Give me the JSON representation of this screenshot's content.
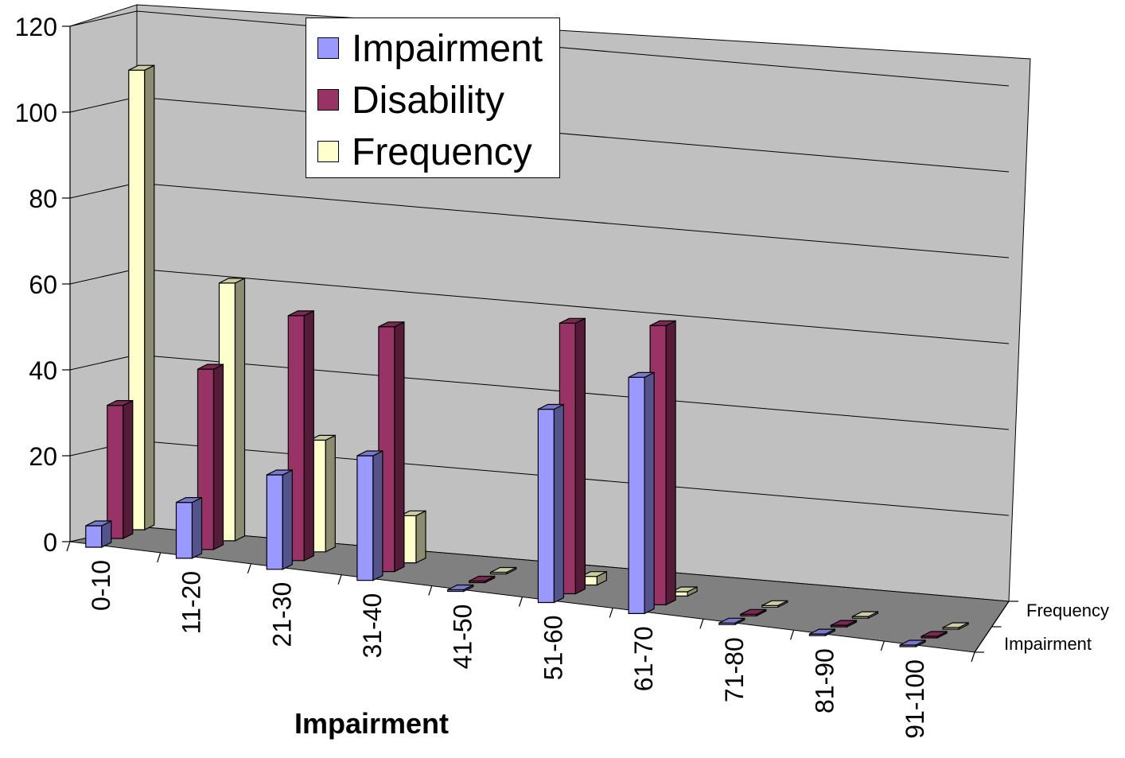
{
  "chart_data": {
    "type": "bar",
    "style": "3d-clustered-column",
    "xlabel": "Impairment",
    "ylabel": "",
    "ylim": [
      0,
      120
    ],
    "yticks": [
      0,
      20,
      40,
      60,
      80,
      100,
      120
    ],
    "grid": true,
    "legend_position": "top-center",
    "depth_axis_labels": [
      "Frequency",
      "Impairment"
    ],
    "categories": [
      "0-10",
      "11-20",
      "21-30",
      "31-40",
      "41-50",
      "51-60",
      "61-70",
      "71-80",
      "81-90",
      "91-100"
    ],
    "series": [
      {
        "name": "Impairment",
        "color": "#9999FF",
        "values": [
          5,
          13,
          22,
          29,
          0,
          45,
          55,
          0,
          0,
          0
        ]
      },
      {
        "name": "Disability",
        "color": "#993366",
        "values": [
          31,
          42,
          57,
          57,
          0,
          63,
          65,
          0,
          0,
          0
        ]
      },
      {
        "name": "Frequency",
        "color": "#FFFFCC",
        "values": [
          107,
          60,
          26,
          11,
          0,
          2,
          1,
          0,
          0,
          0
        ]
      }
    ]
  }
}
